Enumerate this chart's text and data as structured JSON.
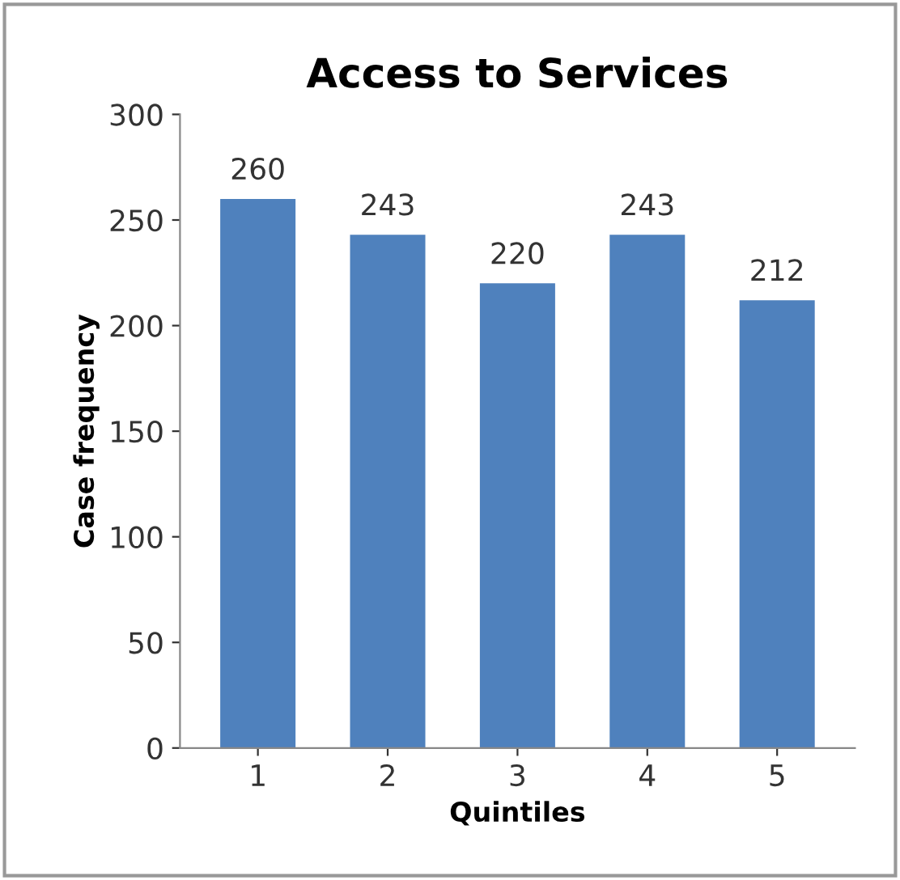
{
  "chart_data": {
    "type": "bar",
    "title": "Access to Services",
    "xlabel": "Quintiles",
    "ylabel": "Case frequency",
    "categories": [
      "1",
      "2",
      "3",
      "4",
      "5"
    ],
    "values": [
      260,
      243,
      220,
      243,
      212
    ],
    "color": "#4f81bd",
    "ylim": [
      0,
      300
    ],
    "yticks": [
      0,
      50,
      100,
      150,
      200,
      250,
      300
    ],
    "grid": false,
    "data_labels": true
  }
}
